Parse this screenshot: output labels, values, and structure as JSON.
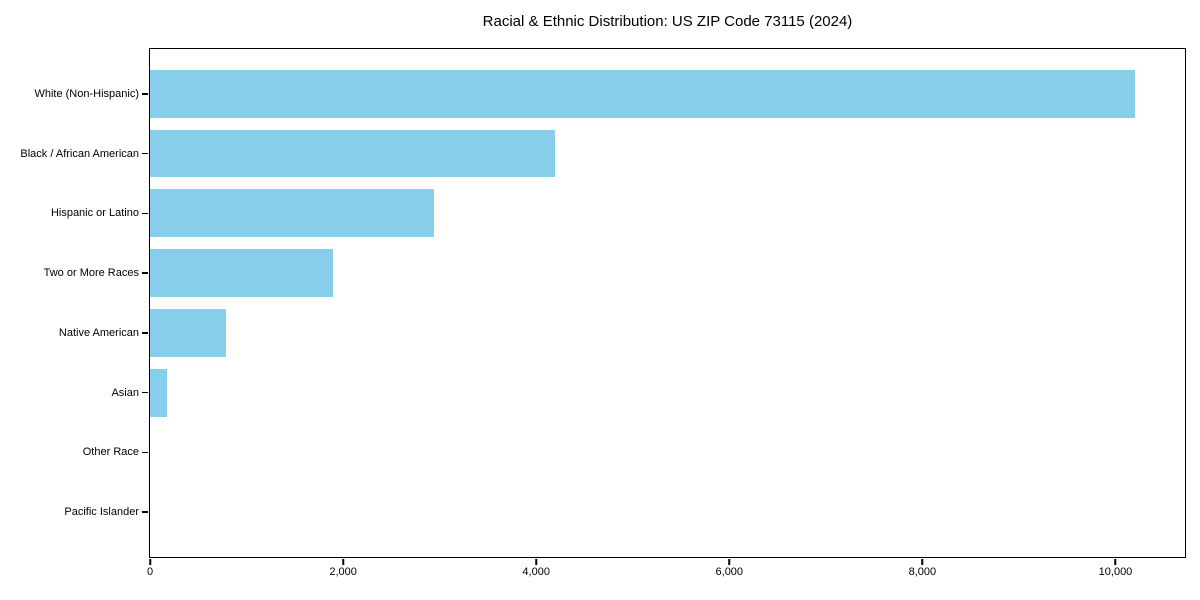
{
  "chart_data": {
    "type": "bar",
    "orientation": "horizontal",
    "title": "Racial & Ethnic Distribution: US ZIP Code 73115 (2024)",
    "categories": [
      "White (Non-Hispanic)",
      "Black / African American",
      "Hispanic or Latino",
      "Two or More Races",
      "Native American",
      "Asian",
      "Other Race",
      "Pacific Islander"
    ],
    "values": [
      10200,
      4190,
      2940,
      1900,
      790,
      180,
      0,
      0
    ],
    "xlabel": "",
    "ylabel": "",
    "xlim": [
      0,
      10720
    ],
    "xticks": [
      0,
      2000,
      4000,
      6000,
      8000,
      10000
    ],
    "xtick_labels": [
      "0",
      "2,000",
      "4,000",
      "6,000",
      "8,000",
      "10,000"
    ],
    "bar_color": "#87CEEB",
    "axis_color": "#000000",
    "text_color": "#000000",
    "background_color": "#ffffff",
    "grid": false,
    "legend": "none",
    "bar_height_frac": 0.8
  }
}
